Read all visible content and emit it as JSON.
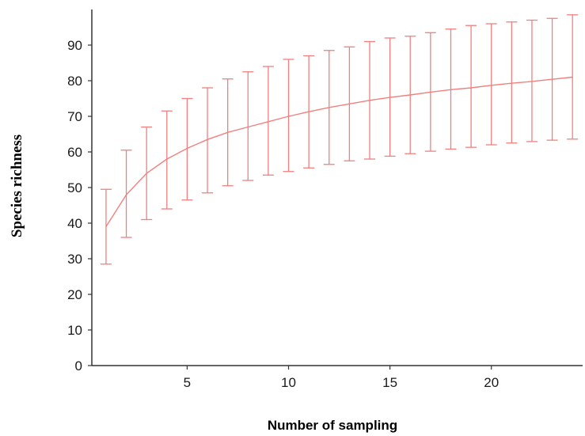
{
  "chart_data": {
    "type": "line",
    "title": "",
    "xlabel": "Number of sampling",
    "ylabel": "Species richness",
    "xlim": [
      0.3,
      24.5
    ],
    "ylim": [
      0,
      100
    ],
    "x_ticks": [
      5,
      10,
      15,
      20
    ],
    "y_ticks": [
      0,
      10,
      20,
      30,
      40,
      50,
      60,
      70,
      80,
      90
    ],
    "grid": false,
    "legend": "none",
    "colors": {
      "series": "#f08080",
      "axis": "#333333"
    },
    "series": [
      {
        "x": [
          1,
          2,
          3,
          4,
          5,
          6,
          7,
          8,
          9,
          10,
          11,
          12,
          13,
          14,
          15,
          16,
          17,
          18,
          19,
          20,
          21,
          22,
          23,
          24
        ],
        "y": [
          39,
          48,
          54,
          58,
          61,
          63.5,
          65.5,
          67,
          68.5,
          70,
          71.3,
          72.5,
          73.5,
          74.5,
          75.3,
          76,
          76.8,
          77.5,
          78,
          78.7,
          79.3,
          79.8,
          80.4,
          81
        ],
        "error_low": [
          28.5,
          36,
          41,
          44,
          46.5,
          48.5,
          50.5,
          52,
          53.5,
          54.5,
          55.5,
          56.5,
          57.5,
          58,
          58.8,
          59.5,
          60.2,
          60.8,
          61.3,
          62,
          62.5,
          62.9,
          63.3,
          63.6
        ],
        "error_high": [
          49.5,
          60.5,
          67,
          71.5,
          75,
          78,
          80.5,
          82.5,
          84,
          86,
          87,
          88.5,
          89.5,
          91,
          92,
          92.5,
          93.5,
          94.5,
          95.5,
          96,
          96.5,
          97,
          97.5,
          98.5
        ]
      }
    ]
  }
}
